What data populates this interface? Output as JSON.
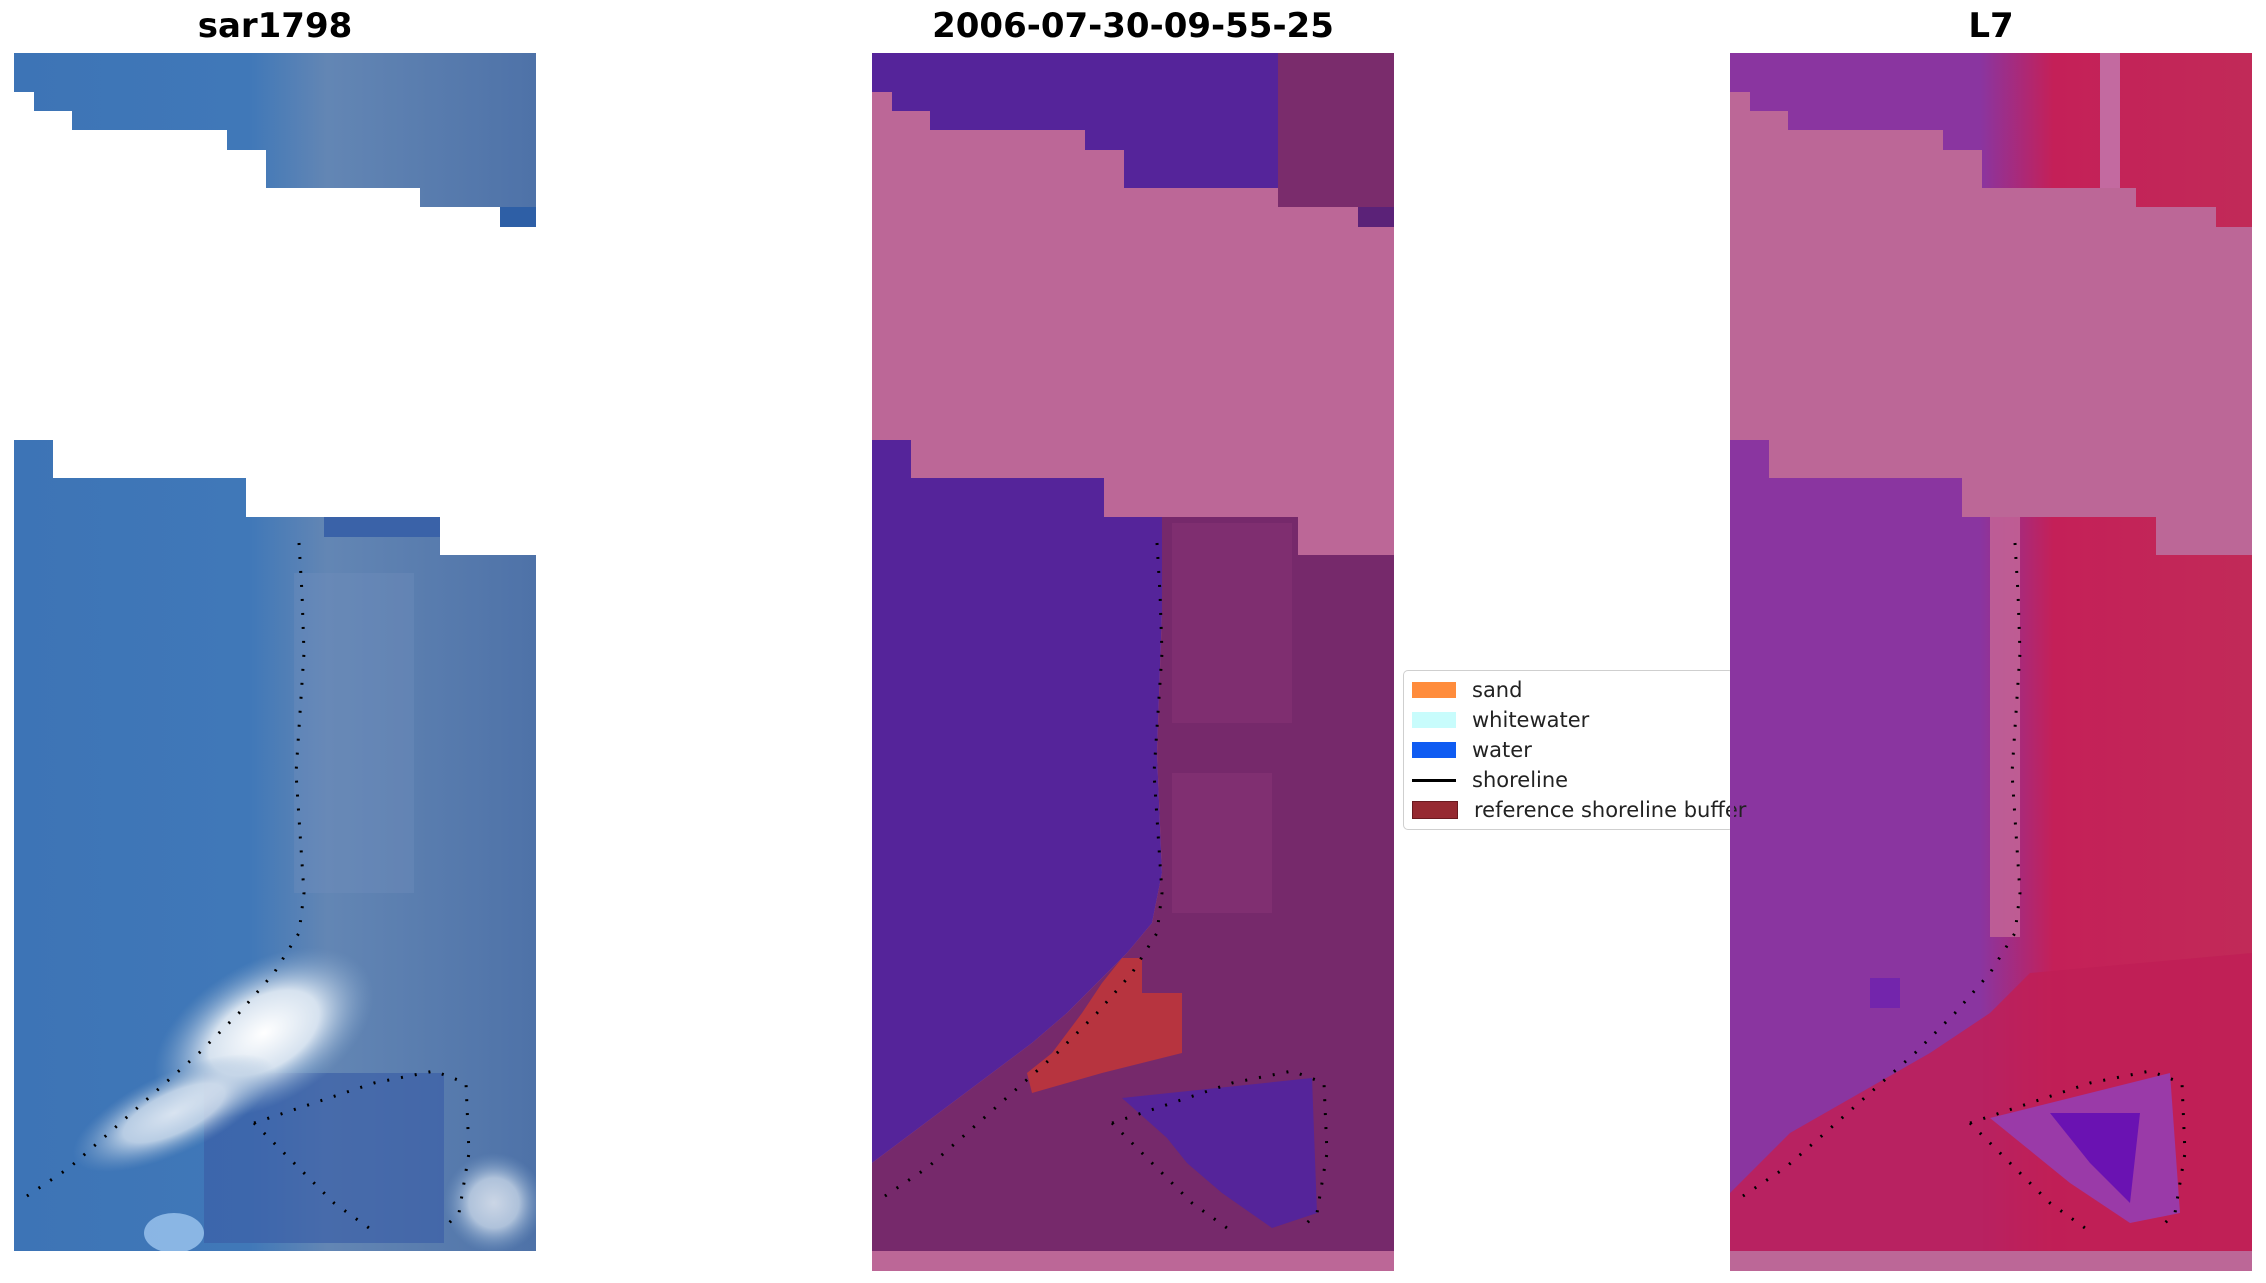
{
  "panels": [
    {
      "title": "sar1798"
    },
    {
      "title": "2006-07-30-09-55-25"
    },
    {
      "title": "L7"
    }
  ],
  "legend": {
    "items": [
      {
        "label": "sand",
        "color": "#ff8c3c",
        "kind": "patch"
      },
      {
        "label": "whitewater",
        "color": "#c8fcfc",
        "kind": "patch"
      },
      {
        "label": "water",
        "color": "#0f5cf2",
        "kind": "patch"
      },
      {
        "label": "shoreline",
        "color": "#000000",
        "kind": "line"
      },
      {
        "label": "reference shoreline buffer",
        "color": "#962a32",
        "kind": "patch"
      }
    ]
  }
}
